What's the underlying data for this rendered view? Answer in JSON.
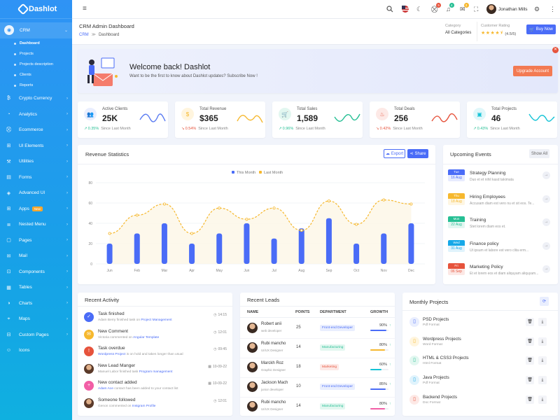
{
  "brand": {
    "name": "Dashlot"
  },
  "sidebar": {
    "items": [
      {
        "label": "CRM",
        "icon": "crm-icon",
        "active": true
      },
      {
        "label": "Crypto Currency",
        "icon": "crypto-icon"
      },
      {
        "label": "Analytics",
        "icon": "analytics-icon"
      },
      {
        "label": "Ecommerce",
        "icon": "cart-icon"
      },
      {
        "label": "UI Elements",
        "icon": "ui-icon"
      },
      {
        "label": "Utilities",
        "icon": "utilities-icon"
      },
      {
        "label": "Forms",
        "icon": "forms-icon"
      },
      {
        "label": "Advanced UI",
        "icon": "advanced-icon"
      },
      {
        "label": "Apps",
        "icon": "apps-icon",
        "badge": "New"
      },
      {
        "label": "Nested Menu",
        "icon": "nested-icon"
      },
      {
        "label": "Pages",
        "icon": "pages-icon"
      },
      {
        "label": "Mail",
        "icon": "mail-icon"
      },
      {
        "label": "Components",
        "icon": "components-icon"
      },
      {
        "label": "Tables",
        "icon": "tables-icon"
      },
      {
        "label": "Charts",
        "icon": "charts-icon"
      },
      {
        "label": "Maps",
        "icon": "maps-icon"
      },
      {
        "label": "Custom Pages",
        "icon": "custompages-icon"
      },
      {
        "label": "Icons",
        "icon": "icons-icon"
      }
    ],
    "sub": [
      "Dashboard",
      "Projects",
      "Projects description",
      "Clients",
      "Reports"
    ]
  },
  "topbar": {
    "user": "Jonathan Mills",
    "cart_count": "5",
    "notif_count": "4",
    "msg_count": "3"
  },
  "page": {
    "title": "CRM Admin Dashboard",
    "crumb_root": "CRM",
    "crumb_sep": "≫",
    "crumb_current": "Dashboard",
    "category_label": "Category",
    "category_value": "All Categories",
    "rating_label": "Customer Rating",
    "rating_value": "(4.5/5)",
    "rating_stars": 4.5,
    "buy_label": "Buy Now"
  },
  "welcome": {
    "title": "Welcome back! Dashlot",
    "text": "Want to be the first to know about Dashlot updates? Subscribe Now !",
    "button": "Upgrade Account"
  },
  "stats": [
    {
      "label": "Active Clients",
      "value": "25K",
      "change": "0.35%",
      "dir": "up",
      "foot": "Since Last Month",
      "color": "#5b7cf2",
      "bg": "#e9eefe",
      "icon": "users-icon",
      "glyph": "👥"
    },
    {
      "label": "Total Revenue",
      "value": "$365",
      "change": "0.54%",
      "dir": "down",
      "foot": "Since Last Month",
      "color": "#f6b82e",
      "bg": "#fff5de",
      "icon": "dollar-icon",
      "glyph": "$"
    },
    {
      "label": "Total Sales",
      "value": "1,589",
      "change": "0.96%",
      "dir": "up",
      "foot": "Since Last Month",
      "color": "#26bf94",
      "bg": "#e2f7f0",
      "icon": "cart-icon",
      "glyph": "🛒"
    },
    {
      "label": "Total Deals",
      "value": "256",
      "change": "0.42%",
      "dir": "down",
      "foot": "Since Last Month",
      "color": "#e6533c",
      "bg": "#fde9e6",
      "icon": "deals-icon",
      "glyph": "♨"
    },
    {
      "label": "Total Projects",
      "value": "46",
      "change": "0.43%",
      "dir": "up",
      "foot": "Since Last Month",
      "color": "#15c3d6",
      "bg": "#e0f7fa",
      "icon": "projects-icon",
      "glyph": "▣"
    }
  ],
  "revenue": {
    "title": "Revenue Statistics",
    "export": "Export",
    "share": "Share"
  },
  "chart_data": {
    "type": "bar",
    "categories": [
      "Jun",
      "Feb",
      "Mar",
      "Apr",
      "May",
      "Jun",
      "Jul",
      "Aug",
      "Sep",
      "Oct",
      "Nov",
      "Dec"
    ],
    "series": [
      {
        "name": "This Month",
        "type": "bar",
        "values": [
          20,
          30,
          40,
          20,
          30,
          40,
          25,
          35,
          45,
          20,
          30,
          40
        ],
        "color": "#4a6cf7"
      },
      {
        "name": "Last Month",
        "type": "line",
        "values": [
          30,
          48,
          59,
          30,
          55,
          44,
          55,
          33,
          62,
          39,
          63,
          59
        ],
        "color": "#f6b82e"
      }
    ],
    "ylim": [
      0,
      80
    ],
    "yticks": [
      0,
      20,
      40,
      60,
      80
    ],
    "legend": "top-center",
    "grid": true
  },
  "events": {
    "title": "Upcoming Events",
    "show_all": "Show All",
    "items": [
      {
        "day": "Tue",
        "date": "16 Aug",
        "title": "Strategy Planning",
        "desc": "Duo et et nihil kasd takimata",
        "color": "#4a6cf7"
      },
      {
        "day": "Thu",
        "date": "18 Aug",
        "title": "Hiring Employees",
        "desc": "Accusam diam est vero nu et sit eos. Te...",
        "color": "#f6b82e"
      },
      {
        "day": "Mon",
        "date": "22 Aug",
        "title": "Training",
        "desc": "Stet lorem diam eos et.",
        "color": "#26bf94"
      },
      {
        "day": "Wed",
        "date": "31 Aug",
        "title": "Finance policy",
        "desc": "Ut ipsum et labore est vero clita erm...",
        "color": "#15a8e8"
      },
      {
        "day": "Fri",
        "date": "06 Sep",
        "title": "Marketing Policy",
        "desc": "Et et lorem eos et diam aliquyam aliquyam...",
        "color": "#e6533c"
      }
    ]
  },
  "activity": {
    "title": "Recent Activity",
    "items": [
      {
        "title": "Task finished",
        "pre": "Adam Berry finished task on ",
        "link": "Project Management",
        "time": "14:15",
        "color": "#4a6cf7",
        "icon": "check-icon",
        "glyph": "✓"
      },
      {
        "title": "New Comment",
        "pre": "Victoria commented on ",
        "link": "Angular Template",
        "time": "12:01",
        "color": "#f6b82e",
        "icon": "comment-icon",
        "glyph": "✉"
      },
      {
        "title": "Task overdue",
        "pre": "",
        "link": "Wordpress Project",
        "post": " is on hold and takes longer than usual",
        "time": "09:45",
        "color": "#e6533c",
        "icon": "alert-icon",
        "glyph": "!"
      },
      {
        "title": "New Lead Manger",
        "pre": "Manuel Labor finished task ",
        "link": "Program management",
        "time": "10-09-22",
        "color": "avatar",
        "icon": "avatar-icon",
        "glyph": ""
      },
      {
        "title": "New contact added",
        "pre": "",
        "link": "Adam Ace",
        "post": " contact has been added to your contact list",
        "time": "10-09-22",
        "color": "#f25ea6",
        "icon": "user-add-icon",
        "glyph": "+"
      },
      {
        "title": "Someone followed",
        "pre": "Genon commented on ",
        "link": "Instgram Profile",
        "time": "12:01",
        "color": "avatar",
        "icon": "avatar-icon",
        "glyph": ""
      }
    ]
  },
  "leads": {
    "title": "Recent Leads",
    "headers": [
      "NAME",
      "POINTS",
      "DEPARTMENT",
      "GROWTH"
    ],
    "rows": [
      {
        "name": "Robert anii",
        "role": "web developer",
        "points": "25",
        "dept": "Front-end Developer",
        "dept_color": "#4a6cf7",
        "dept_bg": "#e9eefe",
        "growth": "90%",
        "growth_val": 90,
        "bar": "#4a6cf7"
      },
      {
        "name": "Rubi mancho",
        "role": "UI/UX Designer",
        "points": "14",
        "dept": "Manufacturing",
        "dept_color": "#26bf94",
        "dept_bg": "#e2f7f0",
        "growth": "80%",
        "growth_val": 80,
        "bar": "#f6b82e"
      },
      {
        "name": "Marckh Roz",
        "role": "Graphic Designer",
        "points": "18",
        "dept": "Marketing",
        "dept_color": "#e6533c",
        "dept_bg": "#fde9e6",
        "growth": "60%",
        "growth_val": 60,
        "bar": "#15c3d6"
      },
      {
        "name": "Jackson Mach",
        "role": "junior developer",
        "points": "10",
        "dept": "Front-end Developer",
        "dept_color": "#4a6cf7",
        "dept_bg": "#e9eefe",
        "growth": "85%",
        "growth_val": 85,
        "bar": "#4a6cf7"
      },
      {
        "name": "Rubi mancho",
        "role": "UI/UX Designer",
        "points": "14",
        "dept": "Manufacturing",
        "dept_color": "#26bf94",
        "dept_bg": "#e2f7f0",
        "growth": "80%",
        "growth_val": 80,
        "bar": "#f25ea6"
      }
    ]
  },
  "projects": {
    "title": "Monthly Projects",
    "items": [
      {
        "name": "PSD Projects",
        "type": "Pdf Format",
        "color": "#4a6cf7",
        "bg": "#e9eefe"
      },
      {
        "name": "Wordpress Projects",
        "type": "Word Format",
        "color": "#f6b82e",
        "bg": "#fff5de"
      },
      {
        "name": "HTML & CSS3 Projects",
        "type": "Html Format",
        "color": "#26bf94",
        "bg": "#e2f7f0"
      },
      {
        "name": "Java Projects",
        "type": "Pdf Format",
        "color": "#15a8e8",
        "bg": "#e0f3fc"
      },
      {
        "name": "Backend Projects",
        "type": "Doc Format",
        "color": "#e6533c",
        "bg": "#fde9e6"
      }
    ]
  }
}
